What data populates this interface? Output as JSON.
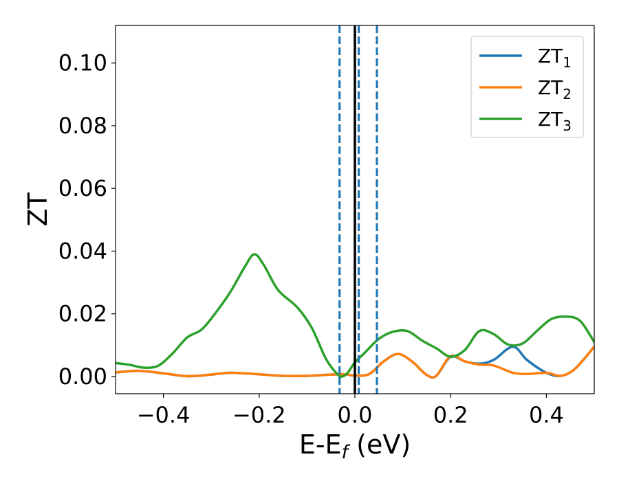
{
  "chart_data": {
    "type": "line",
    "xlabel": {
      "main": "E-E",
      "sub": "f",
      "suffix": " (eV)"
    },
    "ylabel": "ZT",
    "xlim": [
      -0.5,
      0.5
    ],
    "ylim": [
      -0.0055,
      0.112
    ],
    "xticks": [
      -0.4,
      -0.2,
      0.0,
      0.2,
      0.4
    ],
    "xtick_labels": [
      "−0.4",
      "−0.2",
      "0.0",
      "0.2",
      "0.4"
    ],
    "yticks": [
      0.0,
      0.02,
      0.04,
      0.06,
      0.08,
      0.1
    ],
    "ytick_labels": [
      "0.00",
      "0.02",
      "0.04",
      "0.06",
      "0.08",
      "0.10"
    ],
    "grid": false,
    "legend_position": "upper-right",
    "series": [
      {
        "name": "ZT",
        "subscript": "1",
        "color": "#1f77b4",
        "x": [
          -0.5,
          -0.45,
          -0.4,
          -0.35,
          -0.3,
          -0.26,
          -0.2,
          -0.15,
          -0.1,
          -0.05,
          -0.02,
          0.0,
          0.03,
          0.06,
          0.09,
          0.12,
          0.15,
          0.17,
          0.2,
          0.23,
          0.26,
          0.29,
          0.33,
          0.36,
          0.4,
          0.43,
          0.46,
          0.5
        ],
        "y": [
          0.0013,
          0.0018,
          0.001,
          0.0001,
          0.0006,
          0.0012,
          0.0007,
          0.0002,
          0.0002,
          0.0006,
          0.0007,
          0.0003,
          0.0008,
          0.0048,
          0.0072,
          0.0047,
          0.0005,
          0.0002,
          0.0063,
          0.0048,
          0.0041,
          0.0053,
          0.0095,
          0.0052,
          0.0012,
          0.0002,
          0.0025,
          0.0095
        ]
      },
      {
        "name": "ZT",
        "subscript": "2",
        "color": "#ff7f0e",
        "x": [
          -0.5,
          -0.45,
          -0.4,
          -0.35,
          -0.3,
          -0.26,
          -0.2,
          -0.15,
          -0.1,
          -0.05,
          -0.02,
          0.0,
          0.03,
          0.06,
          0.09,
          0.12,
          0.15,
          0.17,
          0.2,
          0.23,
          0.26,
          0.29,
          0.33,
          0.36,
          0.4,
          0.43,
          0.46,
          0.5
        ],
        "y": [
          0.0013,
          0.0018,
          0.001,
          0.0001,
          0.0006,
          0.0012,
          0.0007,
          0.0002,
          0.0002,
          0.0006,
          0.0007,
          0.0003,
          0.0008,
          0.0048,
          0.0072,
          0.0047,
          0.0005,
          0.0002,
          0.0065,
          0.0048,
          0.0038,
          0.0035,
          0.0012,
          0.0008,
          0.0012,
          0.0002,
          0.0025,
          0.0095
        ]
      },
      {
        "name": "ZT",
        "subscript": "3",
        "color": "#2ca02c",
        "x": [
          -0.5,
          -0.47,
          -0.44,
          -0.41,
          -0.38,
          -0.35,
          -0.32,
          -0.29,
          -0.26,
          -0.23,
          -0.21,
          -0.19,
          -0.16,
          -0.12,
          -0.09,
          -0.06,
          -0.035,
          -0.025,
          -0.015,
          0.0,
          0.02,
          0.05,
          0.08,
          0.11,
          0.14,
          0.17,
          0.2,
          0.23,
          0.26,
          0.29,
          0.32,
          0.35,
          0.38,
          0.41,
          0.44,
          0.47,
          0.5
        ],
        "y": [
          0.0043,
          0.0037,
          0.0028,
          0.0035,
          0.0075,
          0.0125,
          0.015,
          0.0205,
          0.027,
          0.035,
          0.039,
          0.0355,
          0.0275,
          0.022,
          0.0155,
          0.0055,
          0.0005,
          0.0001,
          0.0012,
          0.0045,
          0.0075,
          0.012,
          0.0143,
          0.0145,
          0.0115,
          0.009,
          0.0063,
          0.0085,
          0.0145,
          0.0135,
          0.0102,
          0.0105,
          0.0145,
          0.0183,
          0.0191,
          0.0178,
          0.011
        ]
      }
    ],
    "vlines": [
      {
        "x": -0.032,
        "style": "dashed",
        "color": "#1f77b4"
      },
      {
        "x": 0.008,
        "style": "dashed",
        "color": "#1f77b4"
      },
      {
        "x": 0.046,
        "style": "dashed",
        "color": "#1f77b4"
      },
      {
        "x": 0.0,
        "style": "solid",
        "color": "#000000"
      }
    ]
  }
}
